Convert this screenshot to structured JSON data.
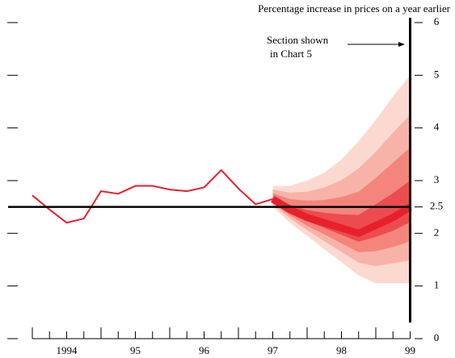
{
  "chart_data": {
    "type": "fan",
    "ylabel": "Percentage increase in prices on a year earlier",
    "annotation": [
      "Section shown",
      "in Chart 5"
    ],
    "xlim": [
      1994,
      1999.5
    ],
    "ylim": [
      0,
      6
    ],
    "yticks": [
      0,
      1,
      2,
      2.5,
      3,
      4,
      5,
      6
    ],
    "xticks": [
      {
        "value": 1994.5,
        "label": "1994"
      },
      {
        "value": 1995.5,
        "label": "95"
      },
      {
        "value": 1996.5,
        "label": "96"
      },
      {
        "value": 1997.5,
        "label": "97"
      },
      {
        "value": 1998.5,
        "label": "98"
      },
      {
        "value": 1999.5,
        "label": "99"
      }
    ],
    "minor_xtick_step": 0.25,
    "target": 2.5,
    "line": {
      "color": "#e8202c",
      "x": [
        1994,
        1994.25,
        1994.5,
        1994.75,
        1995,
        1995.25,
        1995.5,
        1995.75,
        1996,
        1996.25,
        1996.5,
        1996.75,
        1997,
        1997.25,
        1997.5
      ],
      "values": [
        2.72,
        2.45,
        2.2,
        2.28,
        2.8,
        2.75,
        2.9,
        2.9,
        2.83,
        2.8,
        2.87,
        3.2,
        2.85,
        2.55,
        2.65
      ]
    },
    "fan": {
      "x": [
        1997.5,
        1997.75,
        1998,
        1998.25,
        1998.5,
        1998.75,
        1999,
        1999.25,
        1999.5
      ],
      "bands": [
        {
          "color": "#fcd9d0",
          "upper": [
            2.9,
            2.9,
            3.0,
            3.15,
            3.4,
            3.75,
            4.15,
            4.6,
            5.0
          ],
          "lower": [
            2.5,
            2.2,
            1.95,
            1.7,
            1.45,
            1.2,
            1.05,
            1.05,
            1.05
          ]
        },
        {
          "color": "#f8b3a8",
          "upper": [
            2.83,
            2.77,
            2.79,
            2.87,
            3.01,
            3.23,
            3.55,
            3.91,
            4.25
          ],
          "lower": [
            2.55,
            2.28,
            2.06,
            1.85,
            1.65,
            1.44,
            1.38,
            1.43,
            1.49
          ]
        },
        {
          "color": "#f3857c",
          "upper": [
            2.76,
            2.65,
            2.62,
            2.63,
            2.69,
            2.79,
            3.05,
            3.34,
            3.63
          ],
          "lower": [
            2.58,
            2.34,
            2.14,
            1.98,
            1.81,
            1.64,
            1.66,
            1.74,
            1.85
          ]
        },
        {
          "color": "#ec4c4f",
          "upper": [
            2.7,
            2.54,
            2.44,
            2.39,
            2.36,
            2.35,
            2.55,
            2.76,
            3.0
          ],
          "lower": [
            2.62,
            2.4,
            2.23,
            2.1,
            1.97,
            1.84,
            1.93,
            2.05,
            2.21
          ]
        }
      ],
      "central": {
        "color": "#e8202c",
        "values": [
          2.65,
          2.45,
          2.3,
          2.2,
          2.1,
          2.0,
          2.15,
          2.3,
          2.5
        ]
      }
    }
  }
}
